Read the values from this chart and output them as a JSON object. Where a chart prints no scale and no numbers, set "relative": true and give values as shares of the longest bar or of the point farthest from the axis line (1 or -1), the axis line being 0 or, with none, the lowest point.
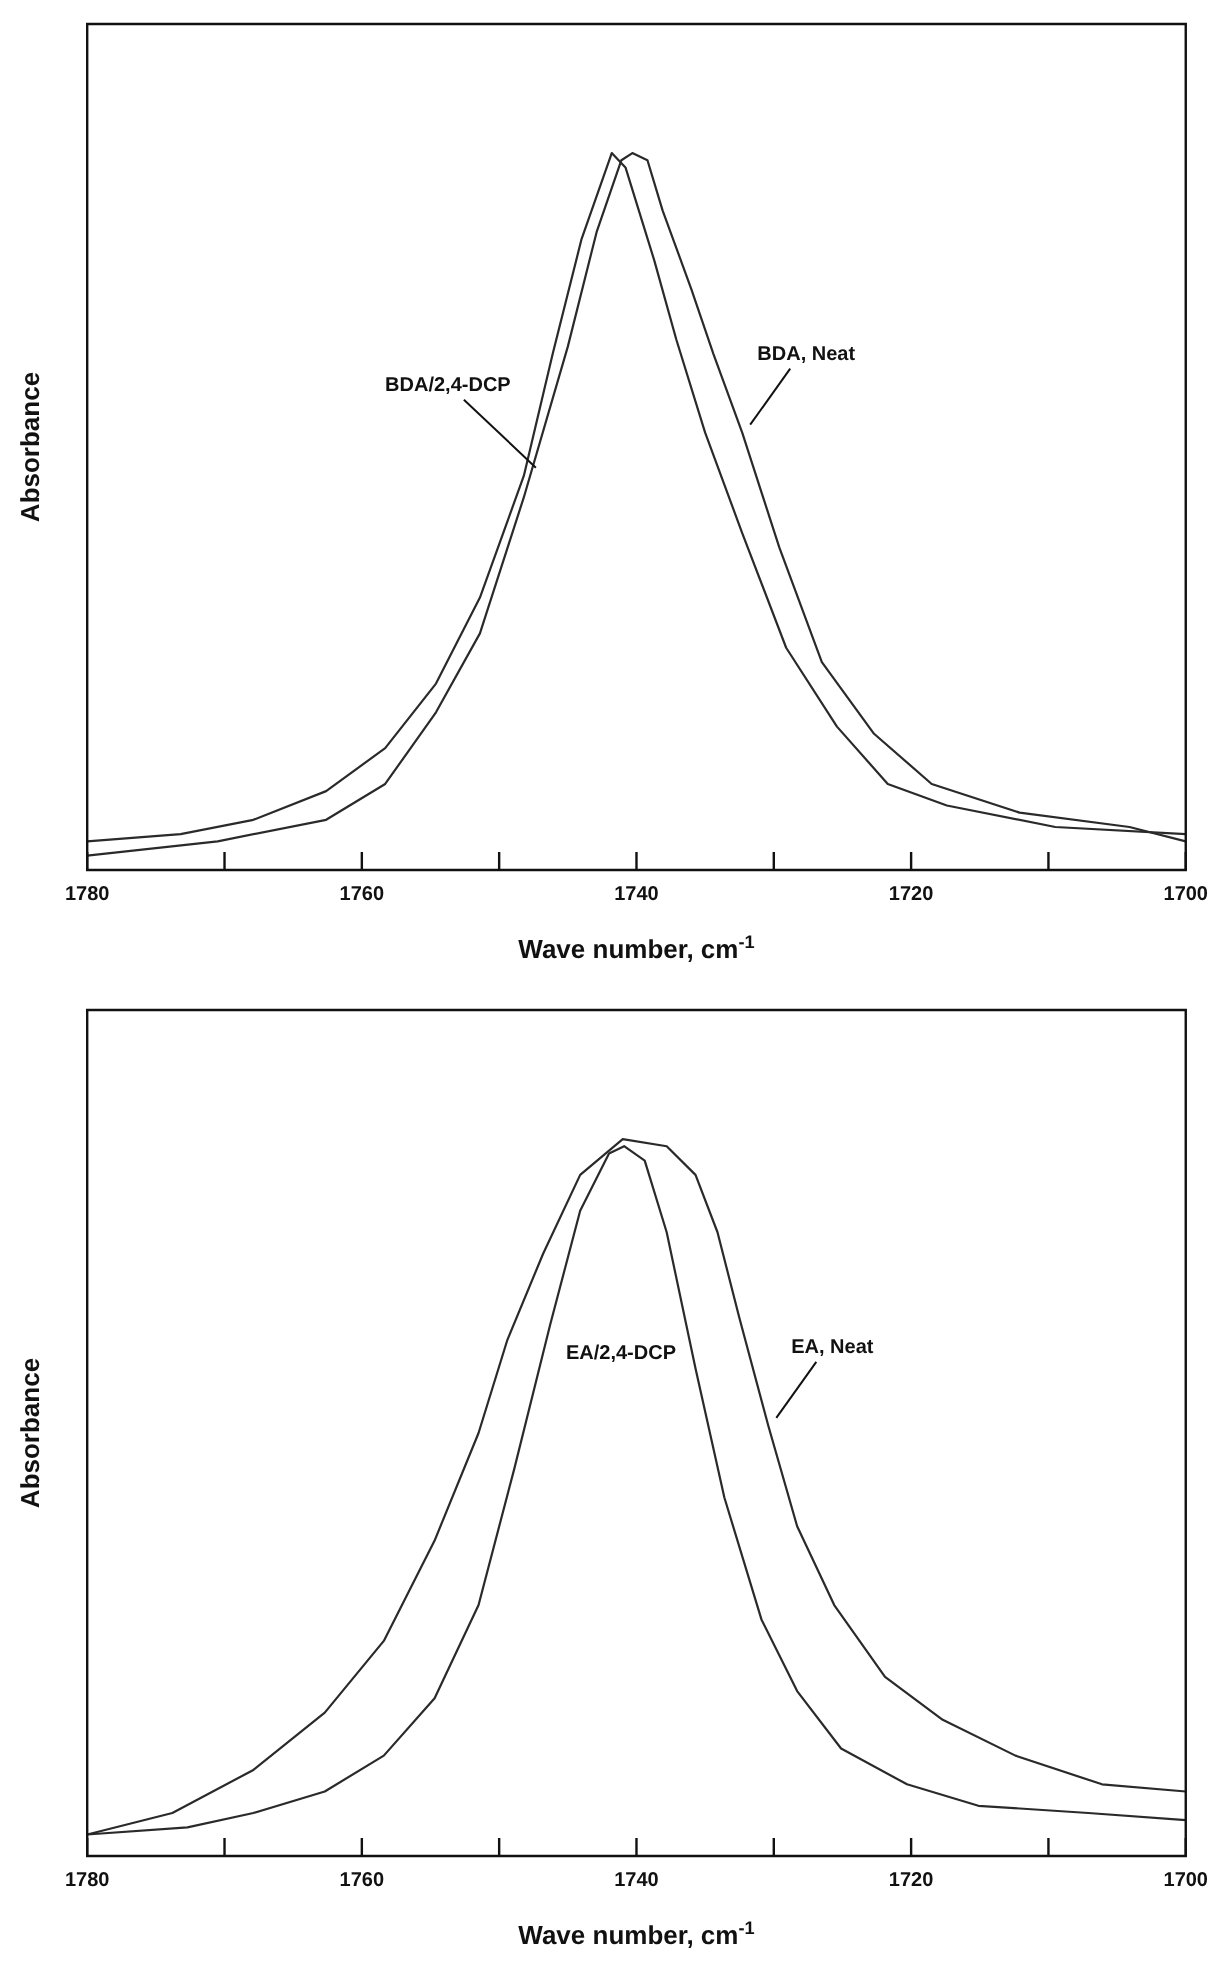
{
  "chart_data": [
    {
      "type": "line",
      "xlabel": "Wave number, cm$^{-1}$",
      "ylabel": "Absorbance",
      "relative": true,
      "xlim": [
        1780,
        1700
      ],
      "xticks": [
        1780,
        {
          "value": 1770,
          "label": null
        },
        1760,
        {
          "value": 1750,
          "label": null
        },
        1740,
        {
          "value": 1730,
          "label": null
        },
        1720,
        {
          "value": 1710,
          "label": null
        },
        1700
      ],
      "series": [
        {
          "name": "BDA/2,4-DCP",
          "color": "#2a2a2a",
          "x": [
            1780,
            1773.2,
            1767.9,
            1762.6,
            1758.3,
            1754.6,
            1751.4,
            1748.2,
            1746.1,
            1744.0,
            1741.8,
            1740.8,
            1738.7,
            1737.1,
            1735.0,
            1732.3,
            1729.1,
            1725.4,
            1721.7,
            1717.4,
            1709.5,
            1700
          ],
          "values": [
            0.04,
            0.05,
            0.07,
            0.11,
            0.17,
            0.26,
            0.38,
            0.55,
            0.72,
            0.88,
            1.0,
            0.98,
            0.85,
            0.74,
            0.61,
            0.47,
            0.31,
            0.2,
            0.12,
            0.09,
            0.06,
            0.05
          ]
        },
        {
          "name": "BDA, Neat",
          "color": "#2a2a2a",
          "x": [
            1780,
            1770.5,
            1762.6,
            1758.3,
            1754.6,
            1751.4,
            1748.2,
            1745.0,
            1742.9,
            1741.1,
            1740.3,
            1739.2,
            1738.1,
            1736.0,
            1734.4,
            1732.3,
            1729.6,
            1726.5,
            1722.7,
            1718.5,
            1712.1,
            1704.1,
            1700
          ],
          "values": [
            0.02,
            0.04,
            0.07,
            0.12,
            0.22,
            0.33,
            0.52,
            0.73,
            0.89,
            0.99,
            1.0,
            0.99,
            0.92,
            0.81,
            0.72,
            0.61,
            0.45,
            0.29,
            0.19,
            0.12,
            0.08,
            0.06,
            0.04
          ]
        }
      ]
    },
    {
      "type": "line",
      "xlabel": "Wave number, cm$^{-1}$",
      "ylabel": "Absorbance",
      "relative": true,
      "xlim": [
        1780,
        1700
      ],
      "xticks": [
        1780,
        {
          "value": 1770,
          "label": null
        },
        1760,
        {
          "value": 1750,
          "label": null
        },
        1740,
        {
          "value": 1730,
          "label": null
        },
        1720,
        {
          "value": 1710,
          "label": null
        },
        1700
      ],
      "series": [
        {
          "name": "EA/2,4-DCP",
          "color": "#2a2a2a",
          "x": [
            1780,
            1772.7,
            1767.9,
            1762.7,
            1758.4,
            1754.7,
            1751.5,
            1748.9,
            1746.3,
            1744.1,
            1742.0,
            1740.9,
            1739.4,
            1737.8,
            1735.7,
            1733.6,
            1730.9,
            1728.3,
            1725.1,
            1720.3,
            1715.1,
            1707.1,
            1700
          ],
          "values": [
            0.03,
            0.04,
            0.06,
            0.09,
            0.14,
            0.22,
            0.35,
            0.54,
            0.74,
            0.9,
            0.98,
            0.99,
            0.97,
            0.87,
            0.68,
            0.5,
            0.33,
            0.23,
            0.15,
            0.1,
            0.07,
            0.06,
            0.05
          ]
        },
        {
          "name": "EA, Neat",
          "color": "#2a2a2a",
          "x": [
            1780,
            1773.8,
            1767.9,
            1762.7,
            1758.4,
            1754.7,
            1751.5,
            1749.4,
            1746.8,
            1744.1,
            1741.0,
            1737.8,
            1735.7,
            1734.1,
            1732.5,
            1730.4,
            1728.3,
            1725.6,
            1721.9,
            1717.7,
            1712.4,
            1706.1,
            1700
          ],
          "values": [
            0.03,
            0.06,
            0.12,
            0.2,
            0.3,
            0.44,
            0.59,
            0.72,
            0.84,
            0.95,
            1.0,
            0.99,
            0.95,
            0.87,
            0.75,
            0.6,
            0.46,
            0.35,
            0.25,
            0.19,
            0.14,
            0.1,
            0.09
          ]
        }
      ]
    }
  ]
}
